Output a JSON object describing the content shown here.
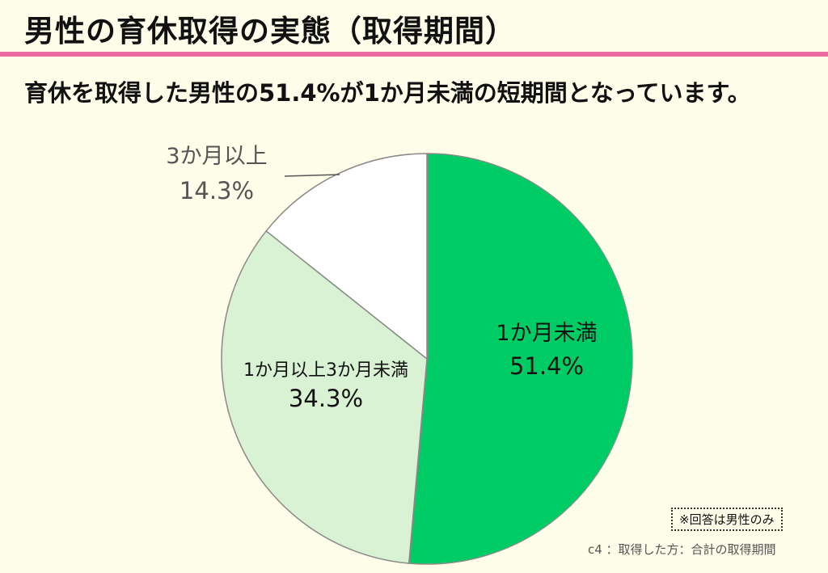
{
  "header": {
    "title": "男性の育休取得の実態（取得期間）",
    "subtitle": "育休を取得した男性の51.4%が1か月未満の短期間となっています。"
  },
  "chart_data": {
    "type": "pie",
    "title": "",
    "categories": [
      "1か月未満",
      "1か月以上3か月未満",
      "3か月以上"
    ],
    "values": [
      51.4,
      34.3,
      14.3
    ],
    "value_labels": [
      "51.4%",
      "34.3%",
      "14.3%"
    ],
    "colors": [
      "#00cc66",
      "#d9f2d4",
      "#ffffff"
    ],
    "start": "12 o'clock",
    "direction": "clockwise",
    "legend": "none (labels on slices)"
  },
  "notes": {
    "respondents_note": "※回答は男性のみ",
    "source": "c4 ：取得した方：合計の取得期間"
  },
  "colors": {
    "background": "#fdfde9",
    "title_rule": "#f06aa1",
    "slice_border": "#8a8a8a"
  }
}
